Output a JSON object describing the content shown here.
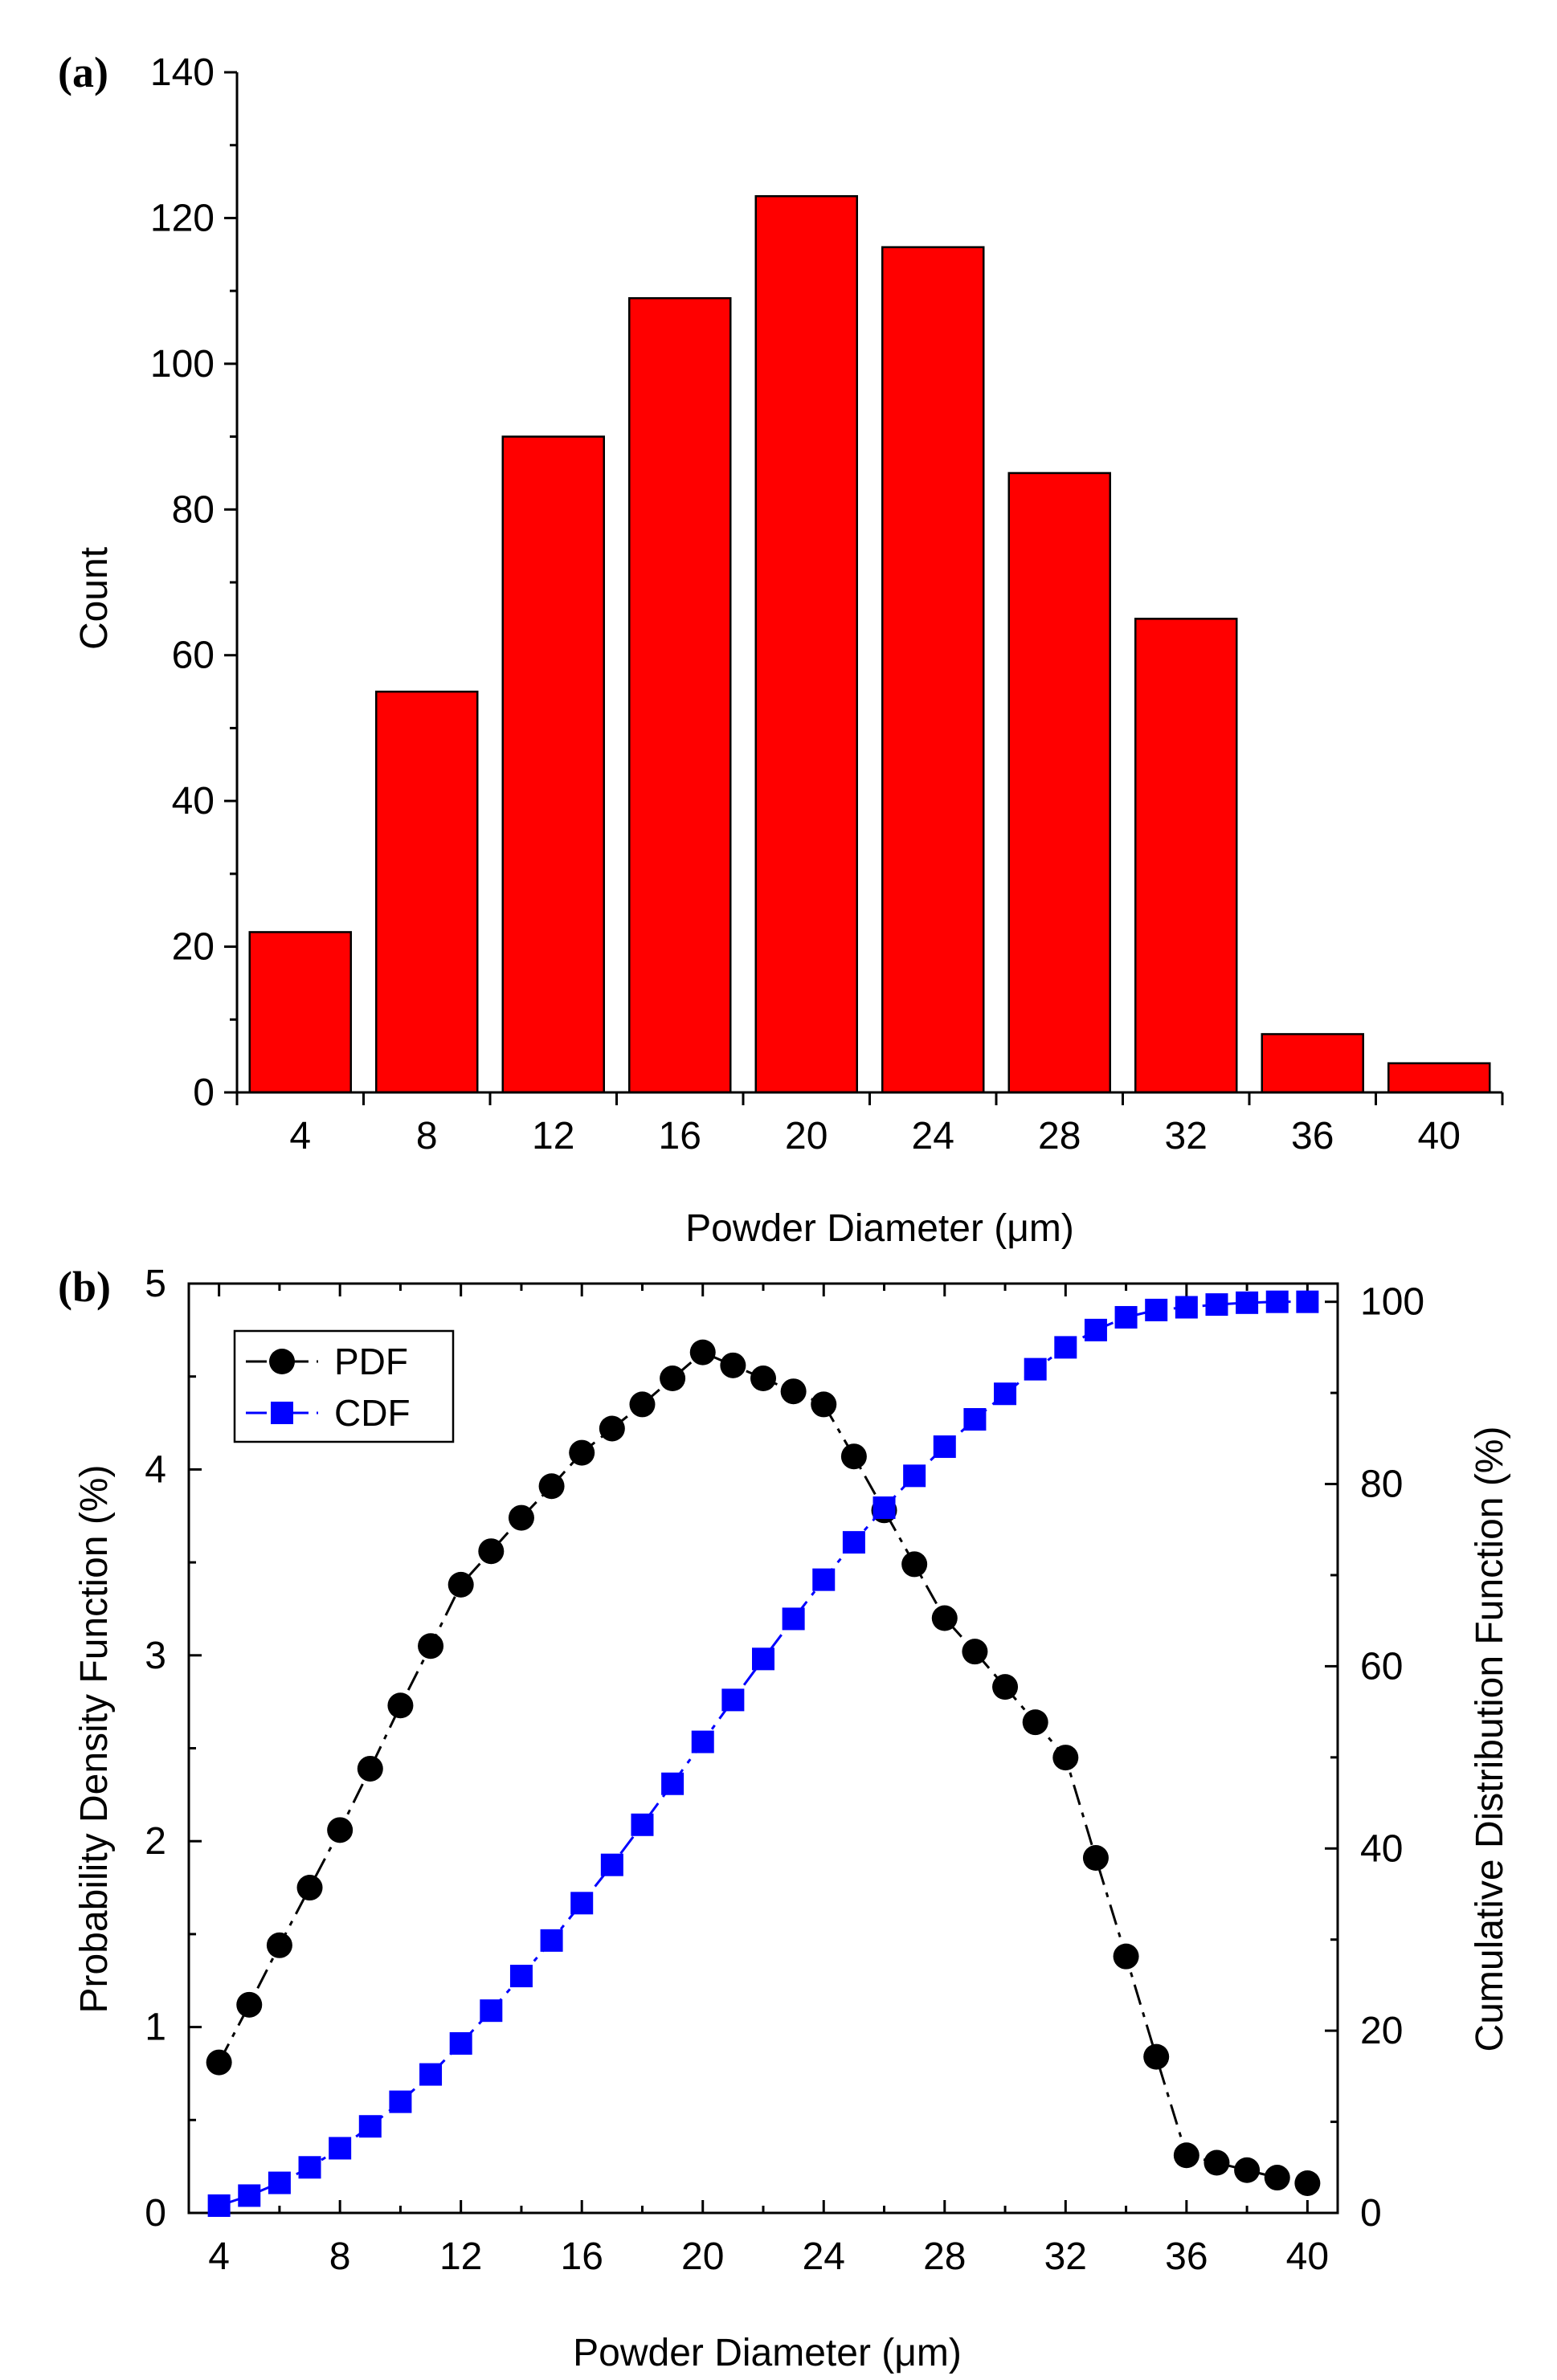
{
  "chart_data": [
    {
      "panel_label": "(a)",
      "type": "bar",
      "xlabel": "Powder Diameter (μm)",
      "ylabel": "Count",
      "ylim": [
        0,
        140
      ],
      "yticks": [
        0,
        20,
        40,
        60,
        80,
        100,
        120,
        140
      ],
      "categories": [
        "4",
        "8",
        "12",
        "16",
        "20",
        "24",
        "28",
        "32",
        "36",
        "40"
      ],
      "values": [
        22,
        55,
        90,
        109,
        123,
        116,
        85,
        65,
        8,
        4
      ],
      "bar_color": "#ff0000"
    },
    {
      "panel_label": "(b)",
      "type": "line",
      "xlabel": "Powder Diameter (μm)",
      "ylabel": "Probability Density Function (%)",
      "y2label": "Cumulative Distribution Function (%)",
      "xlim": [
        3,
        41
      ],
      "xticks": [
        4,
        8,
        12,
        16,
        20,
        24,
        28,
        32,
        36,
        40
      ],
      "ylim": [
        0,
        5
      ],
      "yticks": [
        0,
        1,
        2,
        3,
        4,
        5
      ],
      "y2lim": [
        0,
        102
      ],
      "y2ticks": [
        0,
        20,
        40,
        60,
        80,
        100
      ],
      "x": [
        4,
        5,
        6,
        7,
        8,
        9,
        10,
        11,
        12,
        13,
        14,
        15,
        16,
        17,
        18,
        19,
        20,
        21,
        22,
        23,
        24,
        25,
        26,
        27,
        28,
        29,
        30,
        31,
        32,
        33,
        34,
        35,
        36,
        37,
        38,
        39,
        40
      ],
      "series": [
        {
          "name": "PDF",
          "axis": "left",
          "color": "#000000",
          "marker": "circle",
          "values": [
            0.81,
            1.12,
            1.44,
            1.75,
            2.06,
            2.39,
            2.73,
            3.05,
            3.38,
            3.56,
            3.74,
            3.91,
            4.09,
            4.22,
            4.35,
            4.49,
            4.63,
            4.56,
            4.49,
            4.42,
            4.35,
            4.07,
            3.78,
            3.49,
            3.2,
            3.02,
            2.83,
            2.64,
            2.45,
            1.91,
            1.38,
            0.84,
            0.31,
            0.27,
            0.23,
            0.19,
            0.16
          ]
        },
        {
          "name": "CDF",
          "axis": "right",
          "color": "#0000ff",
          "marker": "square",
          "values": [
            0.8,
            1.9,
            3.3,
            5.0,
            7.1,
            9.5,
            12.2,
            15.2,
            18.6,
            22.2,
            26.0,
            29.9,
            34.0,
            38.2,
            42.6,
            47.1,
            51.7,
            56.3,
            60.8,
            65.2,
            69.5,
            73.6,
            77.4,
            80.9,
            84.1,
            87.1,
            89.9,
            92.6,
            95.0,
            96.9,
            98.3,
            99.1,
            99.4,
            99.7,
            99.9,
            100.0,
            100.0
          ]
        }
      ],
      "legend": [
        "PDF",
        "CDF"
      ],
      "legend_position": "top-left"
    }
  ]
}
